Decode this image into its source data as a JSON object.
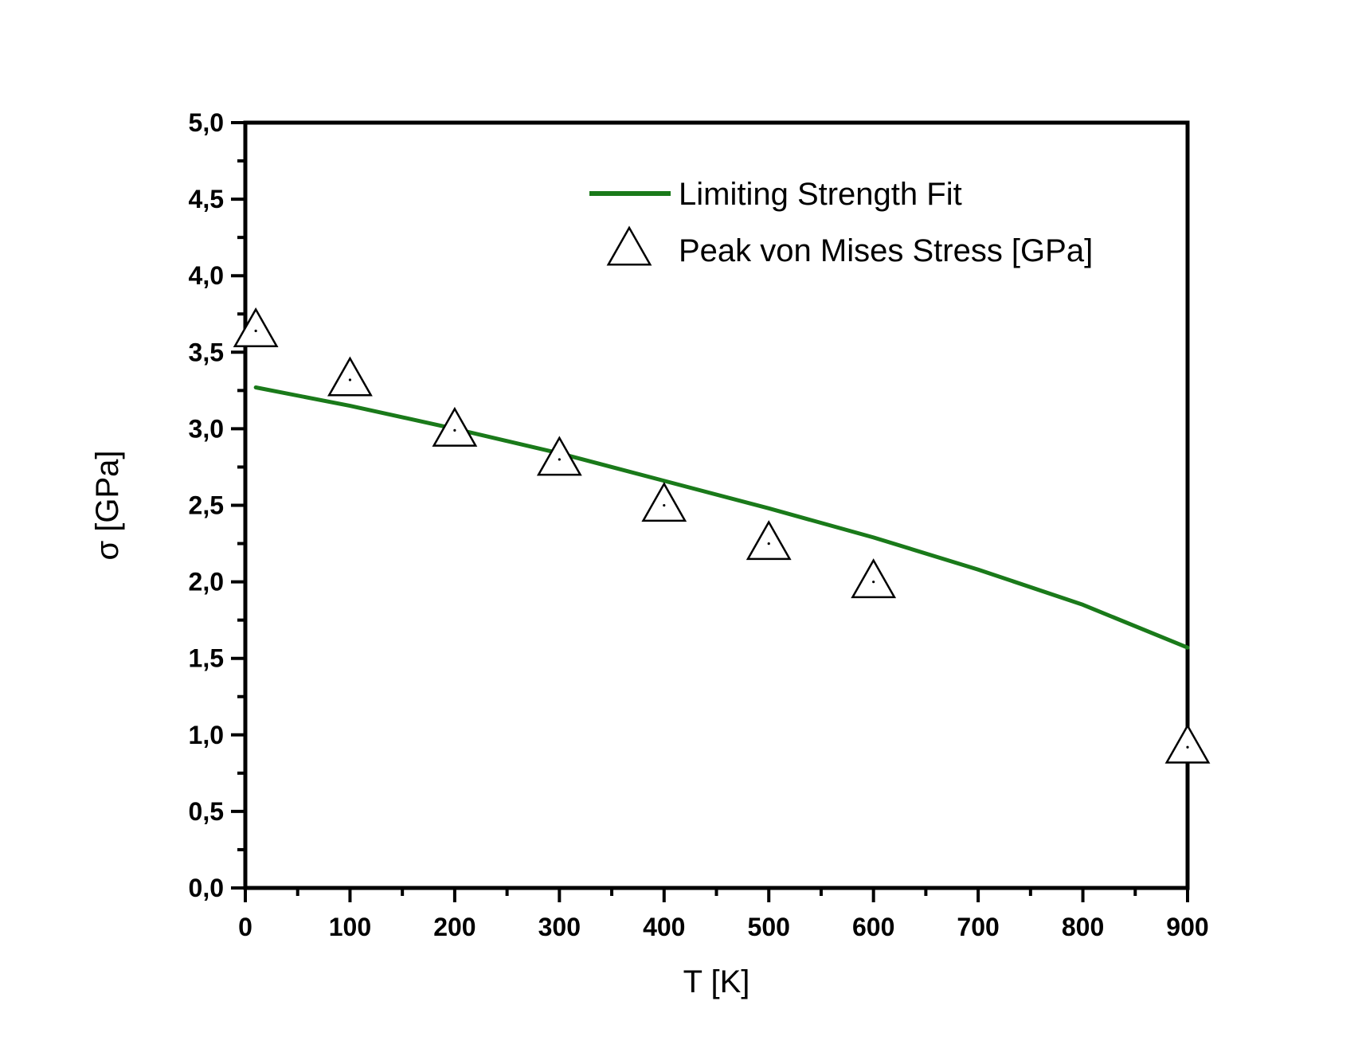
{
  "chart_data": {
    "type": "scatter",
    "title": "",
    "xlabel": "T [K]",
    "ylabel": "σ [GPa]",
    "xlim": [
      0,
      900
    ],
    "ylim": [
      0,
      5
    ],
    "x_ticks": [
      0,
      100,
      200,
      300,
      400,
      500,
      600,
      700,
      800,
      900
    ],
    "x_tick_labels": [
      "0",
      "100",
      "200",
      "300",
      "400",
      "500",
      "600",
      "700",
      "800",
      "900"
    ],
    "y_ticks": [
      0,
      0.5,
      1.0,
      1.5,
      2.0,
      2.5,
      3.0,
      3.5,
      4.0,
      4.5,
      5.0
    ],
    "y_tick_labels": [
      "0,0",
      "0,5",
      "1,0",
      "1,5",
      "2,0",
      "2,5",
      "3,0",
      "3,5",
      "4,0",
      "4,5",
      "5,0"
    ],
    "grid": false,
    "legend_position": "top-right",
    "series": [
      {
        "name": "Limiting Strength Fit",
        "kind": "line",
        "color": "#1a7a1a",
        "x": [
          10,
          100,
          200,
          300,
          400,
          500,
          600,
          700,
          800,
          900
        ],
        "y": [
          3.27,
          3.15,
          3.0,
          2.84,
          2.66,
          2.48,
          2.29,
          2.08,
          1.85,
          1.57
        ]
      },
      {
        "name": "Peak von Mises Stress [GPa]",
        "kind": "scatter",
        "marker": "triangle-open",
        "color": "#000000",
        "x": [
          10,
          100,
          200,
          300,
          400,
          500,
          600,
          900
        ],
        "y": [
          3.65,
          3.33,
          3.0,
          2.81,
          2.51,
          2.26,
          2.01,
          0.93
        ]
      }
    ]
  }
}
